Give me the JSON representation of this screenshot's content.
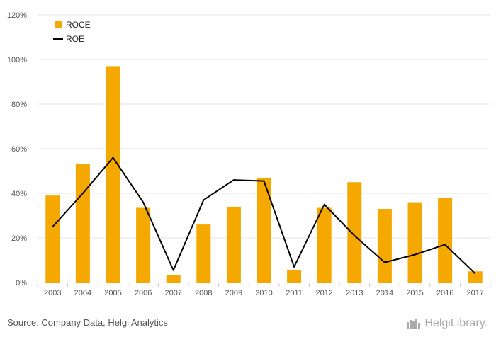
{
  "chart_data": {
    "type": "bar",
    "categories": [
      "2003",
      "2004",
      "2005",
      "2006",
      "2007",
      "2008",
      "2009",
      "2010",
      "2011",
      "2012",
      "2013",
      "2014",
      "2015",
      "2016",
      "2017"
    ],
    "series": [
      {
        "name": "ROCE",
        "type": "bar",
        "color": "#f5a800",
        "values": [
          39,
          53,
          97,
          33.5,
          3.5,
          26,
          34,
          47,
          5.5,
          33.5,
          45,
          33,
          36,
          38,
          5
        ]
      },
      {
        "name": "ROE",
        "type": "line",
        "color": "#000000",
        "values": [
          25,
          40,
          56,
          36,
          5.5,
          37,
          46,
          45.5,
          7,
          35,
          21,
          9,
          12.5,
          17,
          4
        ]
      }
    ],
    "ylim": [
      0,
      120
    ],
    "yticks": [
      "0%",
      "20%",
      "40%",
      "60%",
      "80%",
      "100%",
      "120%"
    ],
    "grid": true,
    "legend_position": "top-left"
  },
  "footer": {
    "source": "Source: Company Data, Helgi Analytics",
    "brand": "HelgiLibrary."
  }
}
